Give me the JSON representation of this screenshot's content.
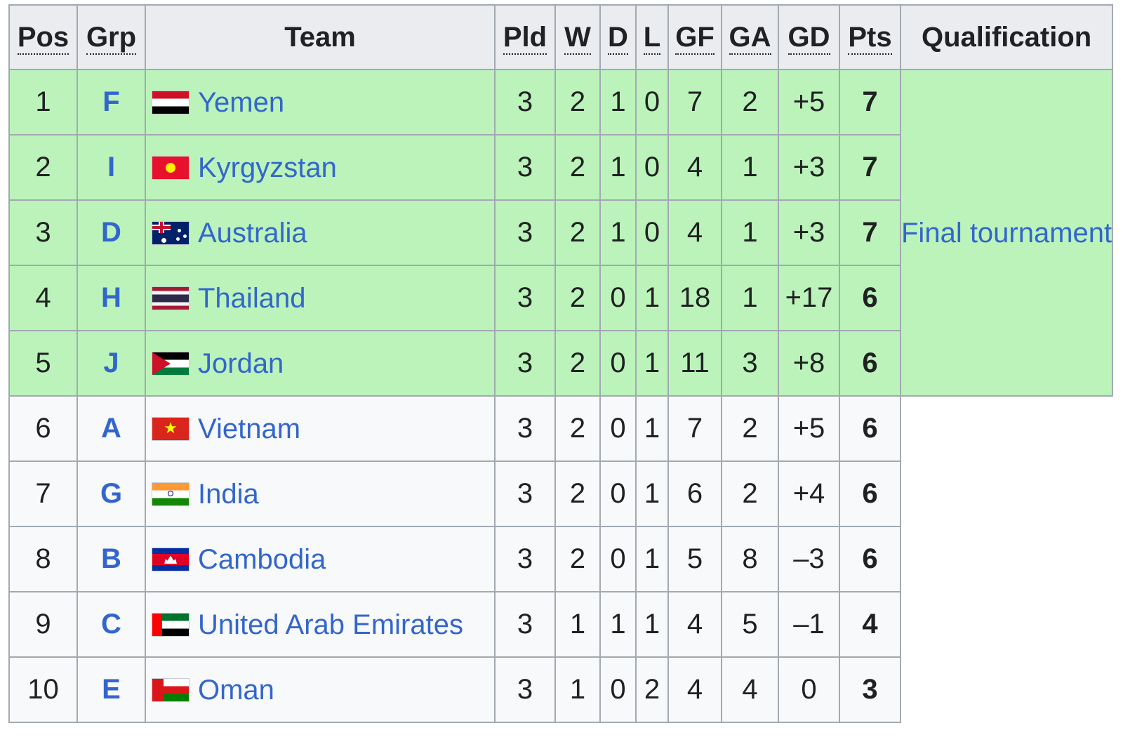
{
  "headers": {
    "pos": "Pos",
    "grp": "Grp",
    "team": "Team",
    "pld": "Pld",
    "w": "W",
    "d": "D",
    "l": "L",
    "gf": "GF",
    "ga": "GA",
    "gd": "GD",
    "pts": "Pts",
    "qualification": "Qualification"
  },
  "qualification_label": "Final tournament",
  "colors": {
    "qualified_row": "#bbf3bb",
    "default_row": "#f8f9fa",
    "header": "#eaecf0",
    "link": "#3366cc",
    "border": "#a2a9b1"
  },
  "rows": [
    {
      "pos": "1",
      "grp": "F",
      "team": "Yemen",
      "flag": "flag-yemen",
      "pld": "3",
      "w": "2",
      "d": "1",
      "l": "0",
      "gf": "7",
      "ga": "2",
      "gd": "+5",
      "pts": "7",
      "qualified": true
    },
    {
      "pos": "2",
      "grp": "I",
      "team": "Kyrgyzstan",
      "flag": "flag-kyrgyzstan",
      "pld": "3",
      "w": "2",
      "d": "1",
      "l": "0",
      "gf": "4",
      "ga": "1",
      "gd": "+3",
      "pts": "7",
      "qualified": true
    },
    {
      "pos": "3",
      "grp": "D",
      "team": "Australia",
      "flag": "flag-australia",
      "pld": "3",
      "w": "2",
      "d": "1",
      "l": "0",
      "gf": "4",
      "ga": "1",
      "gd": "+3",
      "pts": "7",
      "qualified": true
    },
    {
      "pos": "4",
      "grp": "H",
      "team": "Thailand",
      "flag": "flag-thailand",
      "pld": "3",
      "w": "2",
      "d": "0",
      "l": "1",
      "gf": "18",
      "ga": "1",
      "gd": "+17",
      "pts": "6",
      "qualified": true
    },
    {
      "pos": "5",
      "grp": "J",
      "team": "Jordan",
      "flag": "flag-jordan",
      "pld": "3",
      "w": "2",
      "d": "0",
      "l": "1",
      "gf": "11",
      "ga": "3",
      "gd": "+8",
      "pts": "6",
      "qualified": true
    },
    {
      "pos": "6",
      "grp": "A",
      "team": "Vietnam",
      "flag": "flag-vietnam",
      "pld": "3",
      "w": "2",
      "d": "0",
      "l": "1",
      "gf": "7",
      "ga": "2",
      "gd": "+5",
      "pts": "6",
      "qualified": false
    },
    {
      "pos": "7",
      "grp": "G",
      "team": "India",
      "flag": "flag-india",
      "pld": "3",
      "w": "2",
      "d": "0",
      "l": "1",
      "gf": "6",
      "ga": "2",
      "gd": "+4",
      "pts": "6",
      "qualified": false
    },
    {
      "pos": "8",
      "grp": "B",
      "team": "Cambodia",
      "flag": "flag-cambodia",
      "pld": "3",
      "w": "2",
      "d": "0",
      "l": "1",
      "gf": "5",
      "ga": "8",
      "gd": "–3",
      "pts": "6",
      "qualified": false
    },
    {
      "pos": "9",
      "grp": "C",
      "team": "United Arab Emirates",
      "flag": "flag-uae",
      "pld": "3",
      "w": "1",
      "d": "1",
      "l": "1",
      "gf": "4",
      "ga": "5",
      "gd": "–1",
      "pts": "4",
      "qualified": false
    },
    {
      "pos": "10",
      "grp": "E",
      "team": "Oman",
      "flag": "flag-oman",
      "pld": "3",
      "w": "1",
      "d": "0",
      "l": "2",
      "gf": "4",
      "ga": "4",
      "gd": "0",
      "pts": "3",
      "qualified": false
    }
  ]
}
